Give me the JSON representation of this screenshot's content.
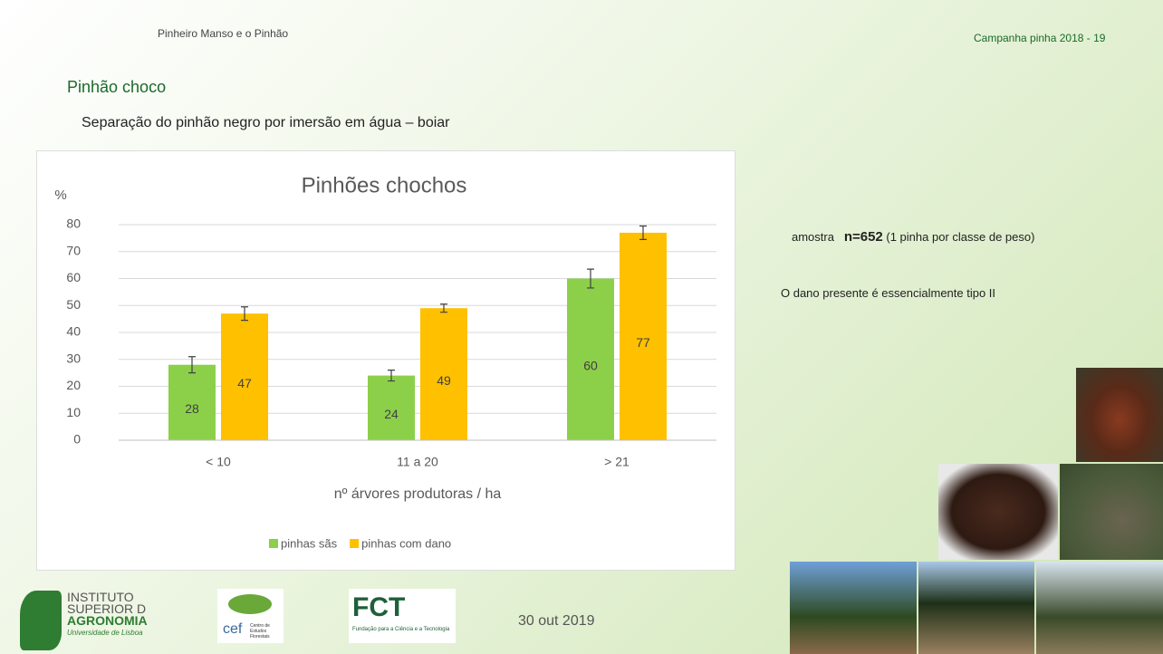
{
  "header": {
    "left": "Pinheiro Manso e o Pinhão",
    "right": "Campanha pinha 2018 - 19"
  },
  "title": "Pinhão choco",
  "subtitle": "Separação do pinhão negro por imersão em água – boiar",
  "notes": {
    "sample": [
      "amostra",
      "n=652",
      "(1 pinha por classe de peso)"
    ],
    "damage": "O  dano presente é essencialmente tipo II"
  },
  "footer": {
    "date": "30 out 2019",
    "isa": [
      "INSTITUTO",
      "SUPERIOR D",
      "AGRONOMIA",
      "Universidade de Lisboa"
    ],
    "cef": [
      "cef",
      "Centro de Estudos Florestais"
    ],
    "fct": [
      "FCT",
      "Fundação para a Ciência e a Tecnologia"
    ]
  },
  "chart_data": {
    "type": "bar",
    "title": "Pinhões chochos",
    "y_label": "%",
    "x_label": "nº árvores produtoras / ha",
    "categories": [
      "< 10",
      "11 a 20",
      "> 21"
    ],
    "series": [
      {
        "name": "pinhas sãs",
        "color": "#8cd04a",
        "values": [
          28,
          24,
          60
        ],
        "errors": [
          3,
          2,
          3.5
        ]
      },
      {
        "name": "pinhas com dano",
        "color": "#ffc000",
        "values": [
          47,
          49,
          77
        ],
        "errors": [
          2.5,
          1.5,
          2.5
        ]
      }
    ],
    "ylim": [
      0,
      80
    ],
    "yticks": [
      0,
      10,
      20,
      30,
      40,
      50,
      60,
      70,
      80
    ],
    "grid": true,
    "legend": "bottom"
  }
}
